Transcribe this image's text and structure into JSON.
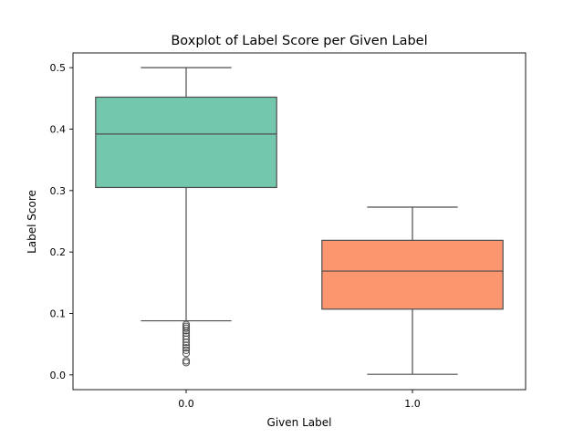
{
  "chart_data": {
    "type": "boxplot",
    "title": "Boxplot of Label Score per Given Label",
    "xlabel": "Given Label",
    "ylabel": "Label Score",
    "ylim": [
      -0.024,
      0.524
    ],
    "yticks": [
      0.0,
      0.1,
      0.2,
      0.3,
      0.4,
      0.5
    ],
    "ytick_labels": [
      "0.0",
      "0.1",
      "0.2",
      "0.3",
      "0.4",
      "0.5"
    ],
    "grid": false,
    "categories": [
      "0.0",
      "1.0"
    ],
    "boxes": [
      {
        "category": "0.0",
        "color": "#66c2a5",
        "whisker_low": 0.088,
        "q1": 0.305,
        "median": 0.392,
        "q3": 0.452,
        "whisker_high": 0.5,
        "outliers": [
          0.082,
          0.079,
          0.076,
          0.072,
          0.068,
          0.063,
          0.058,
          0.053,
          0.048,
          0.044,
          0.04,
          0.035,
          0.023,
          0.02
        ]
      },
      {
        "category": "1.0",
        "color": "#fc8d62",
        "whisker_low": 0.001,
        "q1": 0.107,
        "median": 0.169,
        "q3": 0.219,
        "whisker_high": 0.273,
        "outliers": []
      }
    ]
  }
}
